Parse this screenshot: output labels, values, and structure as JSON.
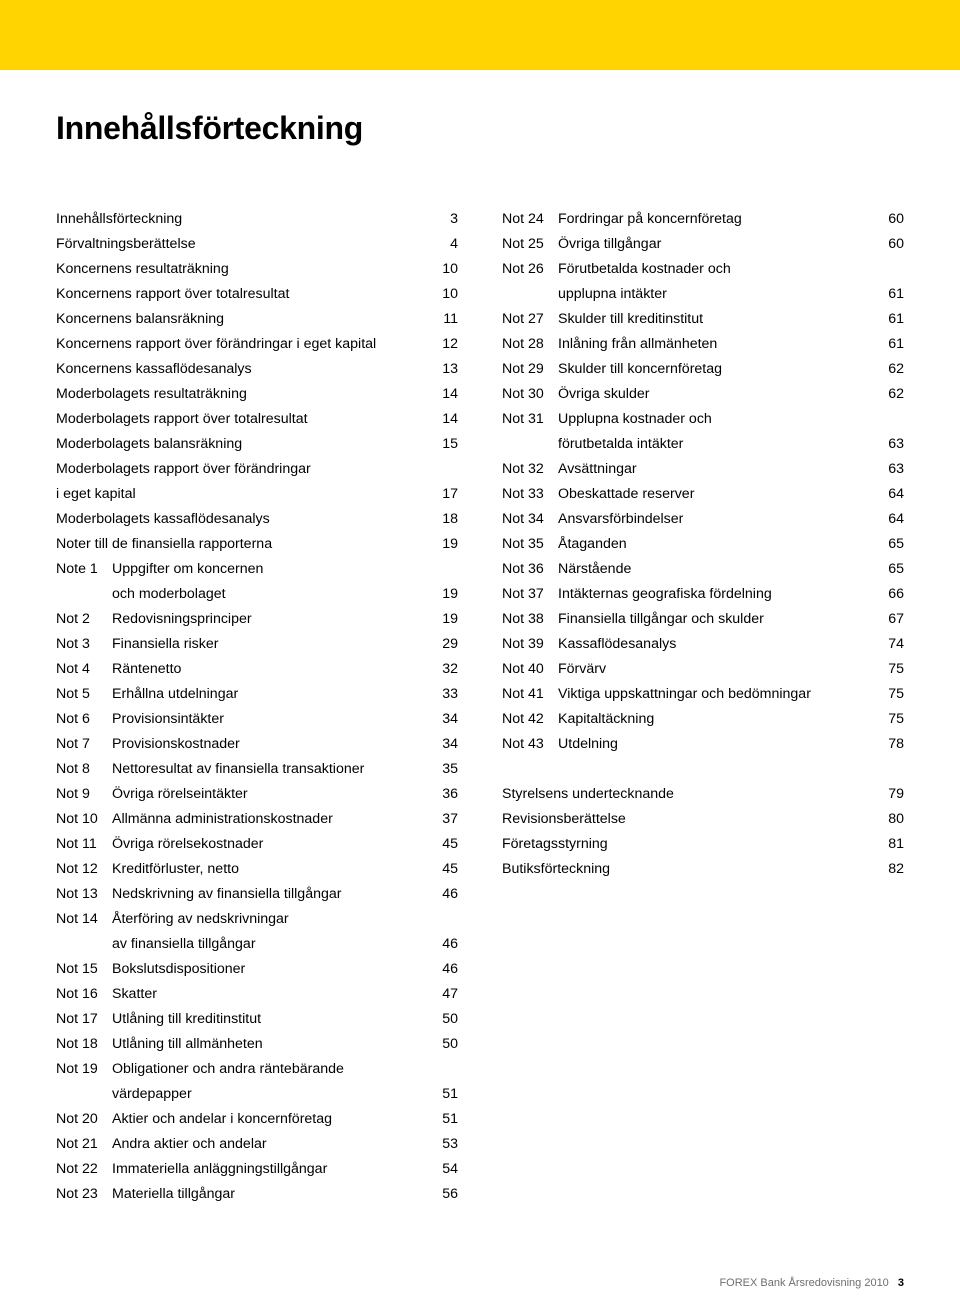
{
  "band_color": "#ffd400",
  "title": "Innehållsförteckning",
  "footer_text": "FOREX Bank Årsredovisning 2010",
  "footer_page": "3",
  "left": [
    {
      "prefix": "",
      "label": "Innehållsförteckning",
      "page": "3"
    },
    {
      "prefix": "",
      "label": "Förvaltningsberättelse",
      "page": "4"
    },
    {
      "prefix": "",
      "label": "Koncernens resultaträkning",
      "page": "10"
    },
    {
      "prefix": "",
      "label": "Koncernens rapport över totalresultat",
      "page": "10"
    },
    {
      "prefix": "",
      "label": "Koncernens balansräkning",
      "page": "11"
    },
    {
      "prefix": "",
      "label": "Koncernens rapport över förändringar i eget kapital",
      "page": "12"
    },
    {
      "prefix": "",
      "label": "Koncernens kassaflödesanalys",
      "page": "13"
    },
    {
      "prefix": "",
      "label": "Moderbolagets resultaträkning",
      "page": "14"
    },
    {
      "prefix": "",
      "label": "Moderbolagets rapport över totalresultat",
      "page": "14"
    },
    {
      "prefix": "",
      "label": "Moderbolagets balansräkning",
      "page": "15"
    },
    {
      "prefix": "",
      "label": "Moderbolagets rapport över förändringar",
      "page": ""
    },
    {
      "prefix": "",
      "label": "i eget kapital",
      "page": "17"
    },
    {
      "prefix": "",
      "label": "Moderbolagets kassaflödesanalys",
      "page": "18"
    },
    {
      "prefix": "",
      "label": "Noter till de finansiella rapporterna",
      "page": "19"
    },
    {
      "prefix": "Note 1",
      "label": "Uppgifter om koncernen",
      "page": ""
    },
    {
      "prefix": "",
      "label": "och moderbolaget",
      "page": "19",
      "indent": true
    },
    {
      "prefix": "Not 2",
      "label": "Redovisningsprinciper",
      "page": "19"
    },
    {
      "prefix": "Not 3",
      "label": "Finansiella risker",
      "page": "29"
    },
    {
      "prefix": "Not 4",
      "label": "Räntenetto",
      "page": "32"
    },
    {
      "prefix": "Not 5",
      "label": "Erhållna utdelningar",
      "page": "33"
    },
    {
      "prefix": "Not 6",
      "label": "Provisionsintäkter",
      "page": "34"
    },
    {
      "prefix": "Not 7",
      "label": "Provisionskostnader",
      "page": "34"
    },
    {
      "prefix": "Not 8",
      "label": "Nettoresultat av finansiella transaktioner",
      "page": "35"
    },
    {
      "prefix": "Not 9",
      "label": "Övriga rörelseintäkter",
      "page": "36"
    },
    {
      "prefix": "Not 10",
      "label": "Allmänna administrationskostnader",
      "page": "37"
    },
    {
      "prefix": "Not 11",
      "label": "Övriga rörelsekostnader",
      "page": "45"
    },
    {
      "prefix": "Not 12",
      "label": "Kreditförluster, netto",
      "page": "45"
    },
    {
      "prefix": "Not 13",
      "label": "Nedskrivning av finansiella tillgångar",
      "page": "46"
    },
    {
      "prefix": "Not 14",
      "label": "Återföring av nedskrivningar",
      "page": ""
    },
    {
      "prefix": "",
      "label": "av finansiella tillgångar",
      "page": "46",
      "indent": true
    },
    {
      "prefix": "Not 15",
      "label": "Bokslutsdispositioner",
      "page": "46"
    },
    {
      "prefix": "Not 16",
      "label": "Skatter",
      "page": "47"
    },
    {
      "prefix": "Not 17",
      "label": "Utlåning till kreditinstitut",
      "page": "50"
    },
    {
      "prefix": "Not 18",
      "label": "Utlåning till allmänheten",
      "page": "50"
    },
    {
      "prefix": "Not 19",
      "label": "Obligationer och andra räntebärande",
      "page": ""
    },
    {
      "prefix": "",
      "label": "värdepapper",
      "page": "51",
      "indent": true
    },
    {
      "prefix": "Not 20",
      "label": "Aktier och andelar i koncernföretag",
      "page": "51"
    },
    {
      "prefix": "Not 21",
      "label": "Andra aktier och andelar",
      "page": "53"
    },
    {
      "prefix": "Not 22",
      "label": "Immateriella anläggningstillgångar",
      "page": "54"
    },
    {
      "prefix": "Not 23",
      "label": "Materiella tillgångar",
      "page": "56"
    }
  ],
  "right": [
    {
      "prefix": "Not 24",
      "label": "Fordringar på koncernföretag",
      "page": "60"
    },
    {
      "prefix": "Not 25",
      "label": "Övriga tillgångar",
      "page": "60"
    },
    {
      "prefix": "Not 26",
      "label": "Förutbetalda kostnader och",
      "page": ""
    },
    {
      "prefix": "",
      "label": "upplupna intäkter",
      "page": "61",
      "indent": true
    },
    {
      "prefix": "Not 27",
      "label": "Skulder till kreditinstitut",
      "page": "61"
    },
    {
      "prefix": "Not 28",
      "label": "Inlåning från allmänheten",
      "page": "61"
    },
    {
      "prefix": "Not 29",
      "label": "Skulder till koncernföretag",
      "page": "62"
    },
    {
      "prefix": "Not 30",
      "label": "Övriga skulder",
      "page": "62"
    },
    {
      "prefix": "Not 31",
      "label": "Upplupna kostnader och",
      "page": ""
    },
    {
      "prefix": "",
      "label": "förutbetalda intäkter",
      "page": "63",
      "indent": true
    },
    {
      "prefix": "Not 32",
      "label": "Avsättningar",
      "page": "63"
    },
    {
      "prefix": "Not 33",
      "label": "Obeskattade reserver",
      "page": "64"
    },
    {
      "prefix": "Not 34",
      "label": "Ansvarsförbindelser",
      "page": "64"
    },
    {
      "prefix": "Not 35",
      "label": "Åtaganden",
      "page": "65"
    },
    {
      "prefix": "Not 36",
      "label": "Närstående",
      "page": "65"
    },
    {
      "prefix": "Not 37",
      "label": "Intäkternas geografiska fördelning",
      "page": "66"
    },
    {
      "prefix": "Not 38",
      "label": "Finansiella tillgångar och skulder",
      "page": "67"
    },
    {
      "prefix": "Not 39",
      "label": "Kassaflödesanalys",
      "page": "74"
    },
    {
      "prefix": "Not 40",
      "label": "Förvärv",
      "page": "75"
    },
    {
      "prefix": "Not 41",
      "label": "Viktiga uppskattningar och bedömningar",
      "page": "75"
    },
    {
      "prefix": "Not 42",
      "label": "Kapitaltäckning",
      "page": "75"
    },
    {
      "prefix": "Not 43",
      "label": "Utdelning",
      "page": "78"
    },
    {
      "prefix": "",
      "label": "",
      "page": "",
      "gap": true
    },
    {
      "prefix": "",
      "label": "Styrelsens undertecknande",
      "page": "79"
    },
    {
      "prefix": "",
      "label": "Revisionsberättelse",
      "page": "80"
    },
    {
      "prefix": "",
      "label": "Företagsstyrning",
      "page": "81"
    },
    {
      "prefix": "",
      "label": "Butiksförteckning",
      "page": "82"
    }
  ]
}
